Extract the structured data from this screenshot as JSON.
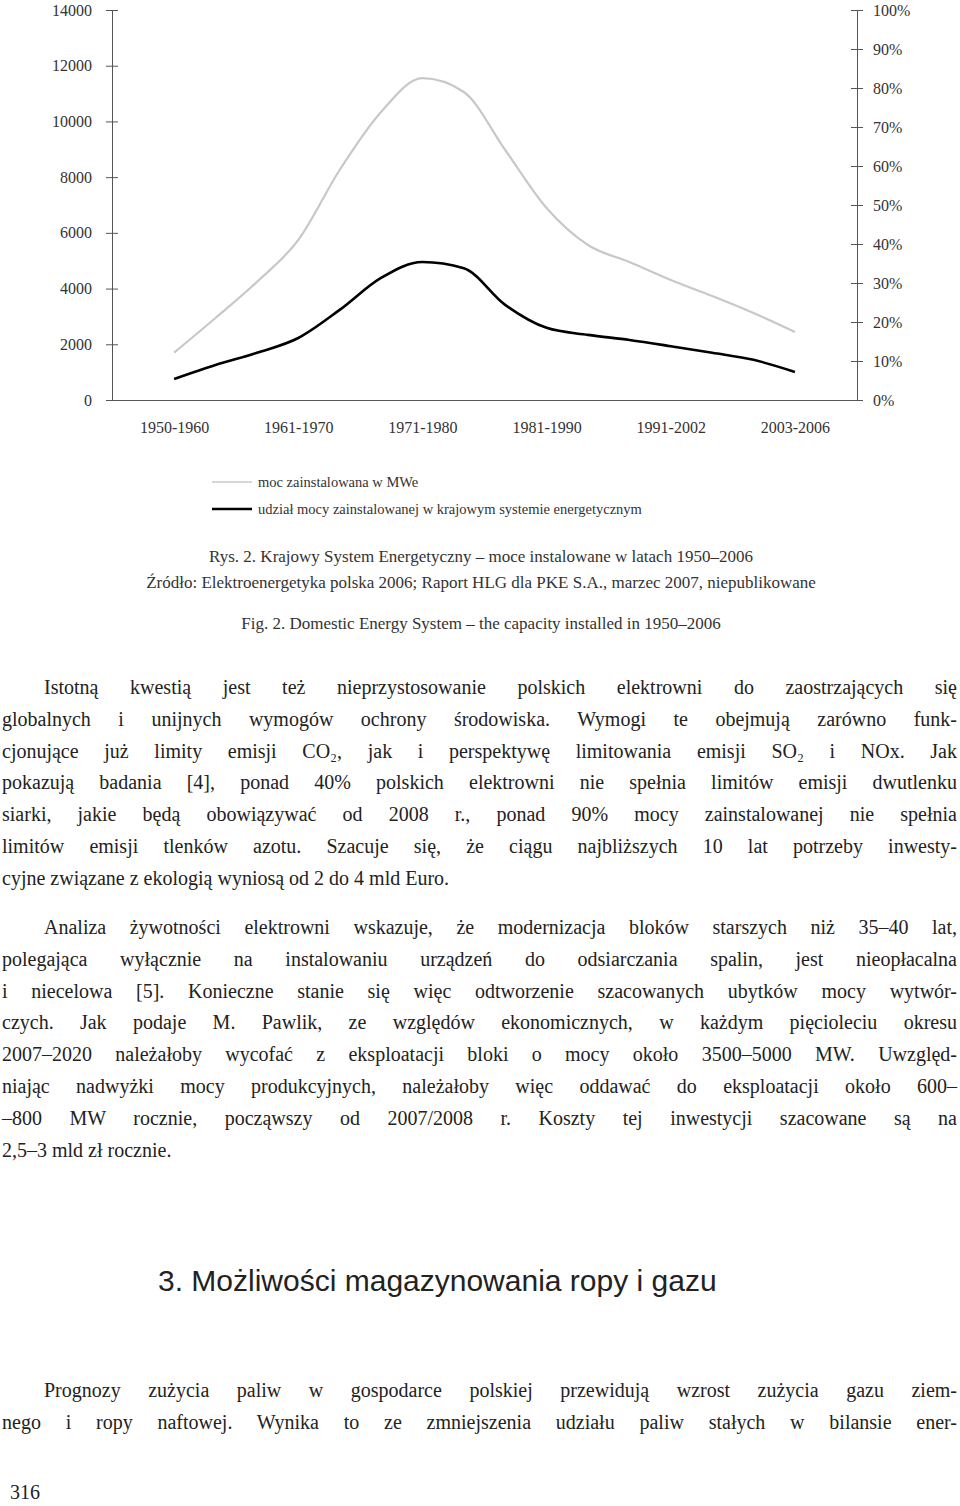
{
  "chart_data": {
    "type": "line",
    "categories": [
      "1950-1960",
      null,
      null,
      "1961-1970",
      null,
      null,
      "1971-1980",
      null,
      null,
      "1981-1990",
      null,
      null,
      "1991-2002",
      null,
      null,
      "2003-2006"
    ],
    "series": [
      {
        "name": "moc zainstalowana w MWe",
        "color": "#c8c8c8",
        "line_style": "solid",
        "values": [
          1700,
          2944,
          4236,
          5744,
          8256,
          10338,
          11554,
          11056,
          8974,
          6892,
          5564,
          4954,
          4308,
          3733,
          3123,
          2441
        ]
      },
      {
        "name": "udział mocy zainstalowanej w krajowym systemie energetycznym",
        "color": "#000000",
        "line_style": "solid",
        "axis": "y2",
        "values": [
          5.4,
          9.0,
          12.1,
          15.9,
          23.1,
          31.3,
          35.4,
          33.8,
          24.4,
          18.5,
          16.7,
          15.4,
          13.8,
          12.1,
          10.3,
          7.2
        ]
      }
    ],
    "ylim": [
      0,
      14000
    ],
    "yticks": [
      0,
      2000,
      4000,
      6000,
      8000,
      10000,
      12000,
      14000
    ],
    "y2lim": [
      0,
      100
    ],
    "y2ticks": [
      {
        "value": 0,
        "label": "0%"
      },
      {
        "value": 10,
        "label": "10%"
      },
      {
        "value": 20,
        "label": "20%"
      },
      {
        "value": 30,
        "label": "30%"
      },
      {
        "value": 40,
        "label": "40%"
      },
      {
        "value": 50,
        "label": "50%"
      },
      {
        "value": 60,
        "label": "60%"
      },
      {
        "value": 70,
        "label": "70%"
      },
      {
        "value": 80,
        "label": "80%"
      },
      {
        "value": 90,
        "label": "90%"
      },
      {
        "value": 100,
        "label": "100%"
      }
    ],
    "grid": false,
    "legend": "bottom"
  },
  "page": {
    "caption": "Rys. 2. Krajowy System Energetyczny – moce instalowane w latach 1950–2006",
    "source": "Źródło: Elektroenergetyka polska 2006; Raport HLG dla PKE S.A., marzec 2007, niepublikowane",
    "caption_en": "Fig. 2. Domestic Energy System – the capacity installed in 1950–2006",
    "paragraphs": [
      [
        "Istotną kwestią jest też nieprzystosowanie polskich elektrowni do zaostrzających się",
        "globalnych i unijnych wymogów ochrony środowiska. Wymogi te obejmują zarówno funk-",
        "cjonujące już limity emisji CO₂, jak i perspektywę limitowania emisji SO₂ i NOx. Jak",
        "pokazują badania [4], ponad 40% polskich elektrowni nie spełnia limitów emisji dwutlenku",
        "siarki, jakie będą obowiązywać od 2008 r., ponad 90% mocy zainstalowanej nie spełnia",
        "limitów emisji tlenków azotu. Szacuje się, że ciągu najbliższych 10 lat potrzeby inwesty-",
        "cyjne związane z ekologią wyniosą od 2 do 4 mld Euro."
      ],
      [
        "Analiza żywotności elektrowni wskazuje, że modernizacja bloków starszych niż 35–40 lat,",
        "polegająca wyłącznie na instalowaniu urządzeń do odsiarczania spalin, jest nieopłacalna",
        "i niecelowa [5]. Konieczne stanie się więc odtworzenie szacowanych ubytków mocy wytwór-",
        "czych. Jak podaje M. Pawlik, ze względów ekonomicznych, w każdym pięcioleciu okresu",
        "2007–2020 należałoby wycofać z eksploatacji bloki o mocy około 3500–5000 MW. Uwzględ-",
        "niając nadwyżki mocy produkcyjnych, należałoby więc oddawać do eksploatacji około 600–",
        "–800 MW rocznie, począwszy od 2007/2008 r. Koszty tej inwestycji szacowane są na",
        "2,5–3 mld zł rocznie."
      ]
    ],
    "heading": "3. Możliwości magazynowania ropy i gazu",
    "paragraphs_after": [
      [
        "Prognozy zużycia paliw w gospodarce polskiej przewidują wzrost zużycia gazu ziem-",
        "nego i ropy naftowej. Wynika to ze zmniejszenia udziału paliw stałych w bilansie ener-"
      ]
    ],
    "page_number": "316"
  }
}
